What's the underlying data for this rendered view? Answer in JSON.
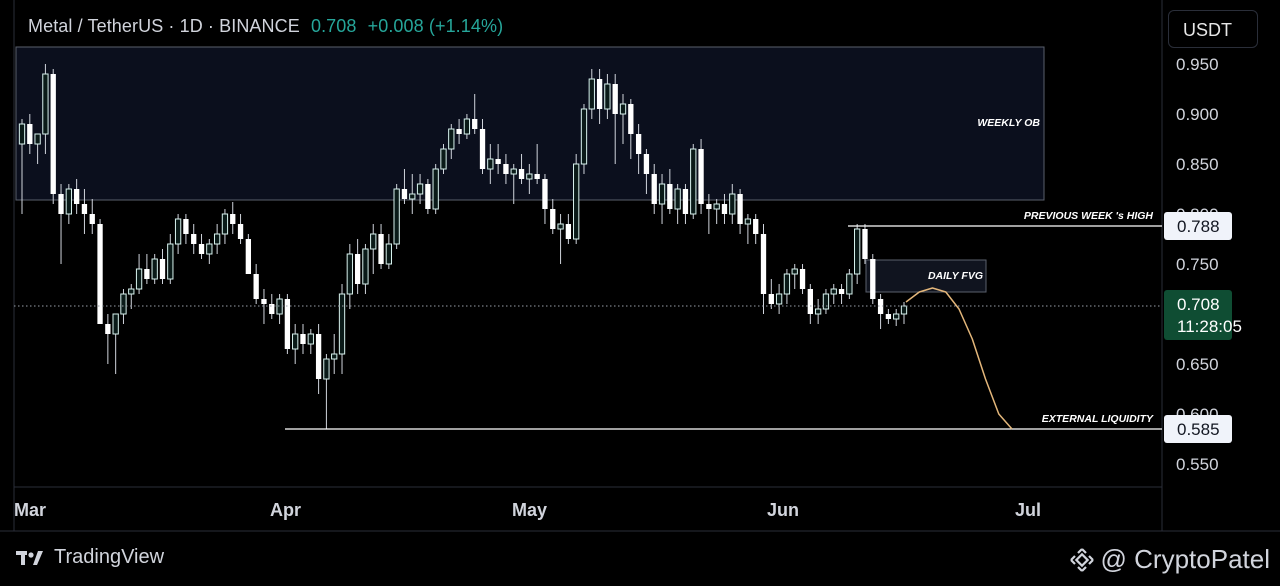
{
  "header": {
    "symbol": "Metal / TetherUS · 1D · BINANCE",
    "price": "0.708",
    "change": "+0.008 (+1.14%)"
  },
  "currency_button": "USDT",
  "footer": {
    "tradingview": "TradingView",
    "watermark": "@ CryptoPatel"
  },
  "annotations": {
    "weekly_ob": "WEEKLY OB",
    "prev_week_high": "PREVIOUS WEEK 's HIGH",
    "daily_fvg": "DAILY FVG",
    "external_liquidity": "EXTERNAL LIQUIDITY"
  },
  "badges": {
    "prev_high": "0.788",
    "current": "0.708",
    "countdown": "11:28:05",
    "liquidity": "0.585"
  },
  "colors": {
    "up": "#ffffff",
    "down": "#ffffff",
    "wick": "#d0d4dc",
    "projection": "#e3b67a",
    "current_badge": "#0f4d33"
  },
  "chart_data": {
    "type": "candlestick",
    "y_axis": {
      "ticks": [
        "0.950",
        "0.900",
        "0.850",
        "0.800",
        "0.750",
        "0.700",
        "0.650",
        "0.600",
        "0.550"
      ],
      "range": [
        0.54,
        0.975
      ]
    },
    "x_axis": {
      "labels": [
        "Mar",
        "Apr",
        "May",
        "Jun",
        "Jul"
      ]
    },
    "levels": {
      "previous_week_high": 0.788,
      "current": 0.708,
      "external_liquidity": 0.585
    },
    "zones": {
      "weekly_ob": {
        "top": 0.967,
        "bottom": 0.814
      },
      "daily_fvg": {
        "top": 0.754,
        "bottom": 0.722
      }
    },
    "candles": [
      [
        0.87,
        0.895,
        0.8,
        0.89
      ],
      [
        0.89,
        0.9,
        0.86,
        0.87
      ],
      [
        0.87,
        0.88,
        0.85,
        0.88
      ],
      [
        0.88,
        0.95,
        0.86,
        0.94
      ],
      [
        0.94,
        0.945,
        0.81,
        0.82
      ],
      [
        0.82,
        0.83,
        0.75,
        0.8
      ],
      [
        0.8,
        0.83,
        0.79,
        0.825
      ],
      [
        0.825,
        0.835,
        0.8,
        0.81
      ],
      [
        0.81,
        0.825,
        0.78,
        0.8
      ],
      [
        0.8,
        0.815,
        0.78,
        0.79
      ],
      [
        0.79,
        0.795,
        0.69,
        0.69
      ],
      [
        0.69,
        0.7,
        0.65,
        0.68
      ],
      [
        0.68,
        0.7,
        0.64,
        0.7
      ],
      [
        0.7,
        0.725,
        0.69,
        0.72
      ],
      [
        0.72,
        0.73,
        0.705,
        0.725
      ],
      [
        0.725,
        0.76,
        0.72,
        0.745
      ],
      [
        0.745,
        0.76,
        0.73,
        0.735
      ],
      [
        0.735,
        0.76,
        0.73,
        0.755
      ],
      [
        0.755,
        0.765,
        0.73,
        0.735
      ],
      [
        0.735,
        0.78,
        0.73,
        0.77
      ],
      [
        0.77,
        0.8,
        0.76,
        0.795
      ],
      [
        0.795,
        0.8,
        0.77,
        0.78
      ],
      [
        0.78,
        0.79,
        0.76,
        0.77
      ],
      [
        0.77,
        0.78,
        0.755,
        0.76
      ],
      [
        0.76,
        0.775,
        0.75,
        0.77
      ],
      [
        0.77,
        0.79,
        0.76,
        0.78
      ],
      [
        0.78,
        0.805,
        0.77,
        0.8
      ],
      [
        0.8,
        0.812,
        0.78,
        0.79
      ],
      [
        0.79,
        0.8,
        0.77,
        0.775
      ],
      [
        0.775,
        0.78,
        0.74,
        0.74
      ],
      [
        0.74,
        0.75,
        0.71,
        0.715
      ],
      [
        0.715,
        0.725,
        0.69,
        0.71
      ],
      [
        0.71,
        0.72,
        0.695,
        0.7
      ],
      [
        0.7,
        0.72,
        0.69,
        0.715
      ],
      [
        0.715,
        0.72,
        0.66,
        0.665
      ],
      [
        0.665,
        0.69,
        0.65,
        0.68
      ],
      [
        0.68,
        0.69,
        0.66,
        0.67
      ],
      [
        0.67,
        0.685,
        0.66,
        0.68
      ],
      [
        0.68,
        0.69,
        0.62,
        0.635
      ],
      [
        0.635,
        0.66,
        0.585,
        0.655
      ],
      [
        0.655,
        0.68,
        0.64,
        0.66
      ],
      [
        0.66,
        0.73,
        0.64,
        0.72
      ],
      [
        0.72,
        0.77,
        0.705,
        0.76
      ],
      [
        0.76,
        0.775,
        0.72,
        0.73
      ],
      [
        0.73,
        0.77,
        0.72,
        0.765
      ],
      [
        0.765,
        0.79,
        0.74,
        0.78
      ],
      [
        0.78,
        0.79,
        0.745,
        0.75
      ],
      [
        0.75,
        0.78,
        0.745,
        0.77
      ],
      [
        0.77,
        0.83,
        0.765,
        0.825
      ],
      [
        0.825,
        0.845,
        0.81,
        0.815
      ],
      [
        0.815,
        0.84,
        0.8,
        0.82
      ],
      [
        0.82,
        0.84,
        0.81,
        0.83
      ],
      [
        0.83,
        0.835,
        0.8,
        0.805
      ],
      [
        0.805,
        0.85,
        0.8,
        0.845
      ],
      [
        0.845,
        0.87,
        0.84,
        0.865
      ],
      [
        0.865,
        0.89,
        0.855,
        0.885
      ],
      [
        0.885,
        0.895,
        0.87,
        0.88
      ],
      [
        0.88,
        0.9,
        0.875,
        0.895
      ],
      [
        0.895,
        0.92,
        0.88,
        0.885
      ],
      [
        0.885,
        0.895,
        0.84,
        0.845
      ],
      [
        0.845,
        0.87,
        0.83,
        0.855
      ],
      [
        0.855,
        0.87,
        0.84,
        0.85
      ],
      [
        0.85,
        0.86,
        0.83,
        0.84
      ],
      [
        0.84,
        0.85,
        0.81,
        0.845
      ],
      [
        0.845,
        0.86,
        0.83,
        0.835
      ],
      [
        0.835,
        0.85,
        0.82,
        0.84
      ],
      [
        0.84,
        0.87,
        0.83,
        0.835
      ],
      [
        0.835,
        0.84,
        0.79,
        0.805
      ],
      [
        0.805,
        0.815,
        0.78,
        0.785
      ],
      [
        0.785,
        0.8,
        0.75,
        0.79
      ],
      [
        0.79,
        0.8,
        0.77,
        0.775
      ],
      [
        0.775,
        0.86,
        0.77,
        0.85
      ],
      [
        0.85,
        0.91,
        0.84,
        0.905
      ],
      [
        0.905,
        0.945,
        0.895,
        0.935
      ],
      [
        0.935,
        0.945,
        0.89,
        0.905
      ],
      [
        0.905,
        0.94,
        0.895,
        0.93
      ],
      [
        0.93,
        0.94,
        0.85,
        0.9
      ],
      [
        0.9,
        0.92,
        0.87,
        0.91
      ],
      [
        0.91,
        0.915,
        0.855,
        0.88
      ],
      [
        0.88,
        0.89,
        0.84,
        0.86
      ],
      [
        0.86,
        0.865,
        0.82,
        0.84
      ],
      [
        0.84,
        0.85,
        0.8,
        0.81
      ],
      [
        0.81,
        0.84,
        0.79,
        0.83
      ],
      [
        0.83,
        0.845,
        0.8,
        0.805
      ],
      [
        0.805,
        0.83,
        0.79,
        0.825
      ],
      [
        0.825,
        0.83,
        0.79,
        0.8
      ],
      [
        0.8,
        0.87,
        0.795,
        0.865
      ],
      [
        0.865,
        0.875,
        0.8,
        0.81
      ],
      [
        0.81,
        0.82,
        0.78,
        0.805
      ],
      [
        0.805,
        0.815,
        0.79,
        0.81
      ],
      [
        0.81,
        0.82,
        0.79,
        0.8
      ],
      [
        0.8,
        0.83,
        0.79,
        0.82
      ],
      [
        0.82,
        0.825,
        0.78,
        0.79
      ],
      [
        0.79,
        0.8,
        0.77,
        0.795
      ],
      [
        0.795,
        0.8,
        0.77,
        0.78
      ],
      [
        0.78,
        0.79,
        0.7,
        0.72
      ],
      [
        0.72,
        0.735,
        0.705,
        0.71
      ],
      [
        0.71,
        0.73,
        0.7,
        0.72
      ],
      [
        0.72,
        0.745,
        0.71,
        0.74
      ],
      [
        0.74,
        0.75,
        0.725,
        0.745
      ],
      [
        0.745,
        0.75,
        0.72,
        0.725
      ],
      [
        0.725,
        0.73,
        0.69,
        0.7
      ],
      [
        0.7,
        0.715,
        0.69,
        0.705
      ],
      [
        0.705,
        0.725,
        0.7,
        0.72
      ],
      [
        0.72,
        0.73,
        0.71,
        0.725
      ],
      [
        0.725,
        0.73,
        0.71,
        0.72
      ],
      [
        0.72,
        0.745,
        0.715,
        0.74
      ],
      [
        0.74,
        0.79,
        0.73,
        0.785
      ],
      [
        0.785,
        0.79,
        0.75,
        0.755
      ],
      [
        0.755,
        0.76,
        0.71,
        0.715
      ],
      [
        0.715,
        0.72,
        0.685,
        0.7
      ],
      [
        0.7,
        0.705,
        0.69,
        0.695
      ],
      [
        0.695,
        0.705,
        0.688,
        0.7
      ],
      [
        0.7,
        0.712,
        0.69,
        0.708
      ]
    ],
    "projection": [
      [
        0.712,
        0.722,
        0.726,
        0.722,
        0.705,
        0.675,
        0.635,
        0.6,
        0.585
      ]
    ]
  }
}
